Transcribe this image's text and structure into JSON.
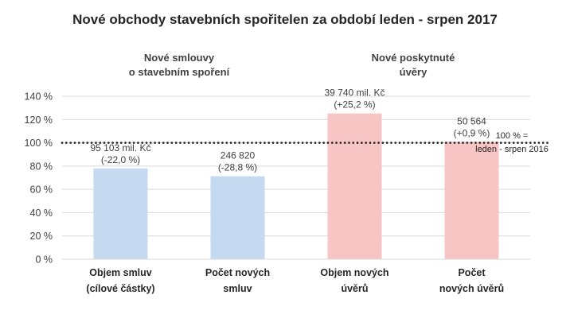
{
  "chart_data": {
    "type": "bar",
    "title": "Nové obchody stavebních spořitelen za období leden - srpen 2017",
    "groups": [
      {
        "label": [
          "Nové smlouvy",
          "o stavebním spoření"
        ],
        "color": "#c5d9f1"
      },
      {
        "label": [
          "Nové poskytnuté",
          "úvěry"
        ],
        "color": "#f8c5c5"
      }
    ],
    "categories": [
      [
        "Objem smluv",
        "(cílové částky)"
      ],
      [
        "Počet  nových",
        "smluv"
      ],
      [
        "Objem nových",
        "úvěrů"
      ],
      [
        "Počet",
        "nových úvěrů"
      ]
    ],
    "values": [
      78.0,
      71.2,
      125.2,
      100.9
    ],
    "bar_groups": [
      0,
      0,
      1,
      1
    ],
    "data_labels": [
      [
        "95 103 mil. Kč",
        "(-22,0  %)"
      ],
      [
        "246 820",
        "(-28,8 %)"
      ],
      [
        "39 740 mil. Kč",
        "(+25,2 %)"
      ],
      [
        "50 564",
        "(+0,9 %)"
      ]
    ],
    "yticks": [
      "0 %",
      "20 %",
      "40 %",
      "60 %",
      "80 %",
      "100 %",
      "120 %",
      "140 %"
    ],
    "ylim": [
      0,
      140
    ],
    "reference_line": {
      "value": 100,
      "label": [
        "100 % =",
        "leden - srpen 2016"
      ]
    },
    "grid": true
  }
}
